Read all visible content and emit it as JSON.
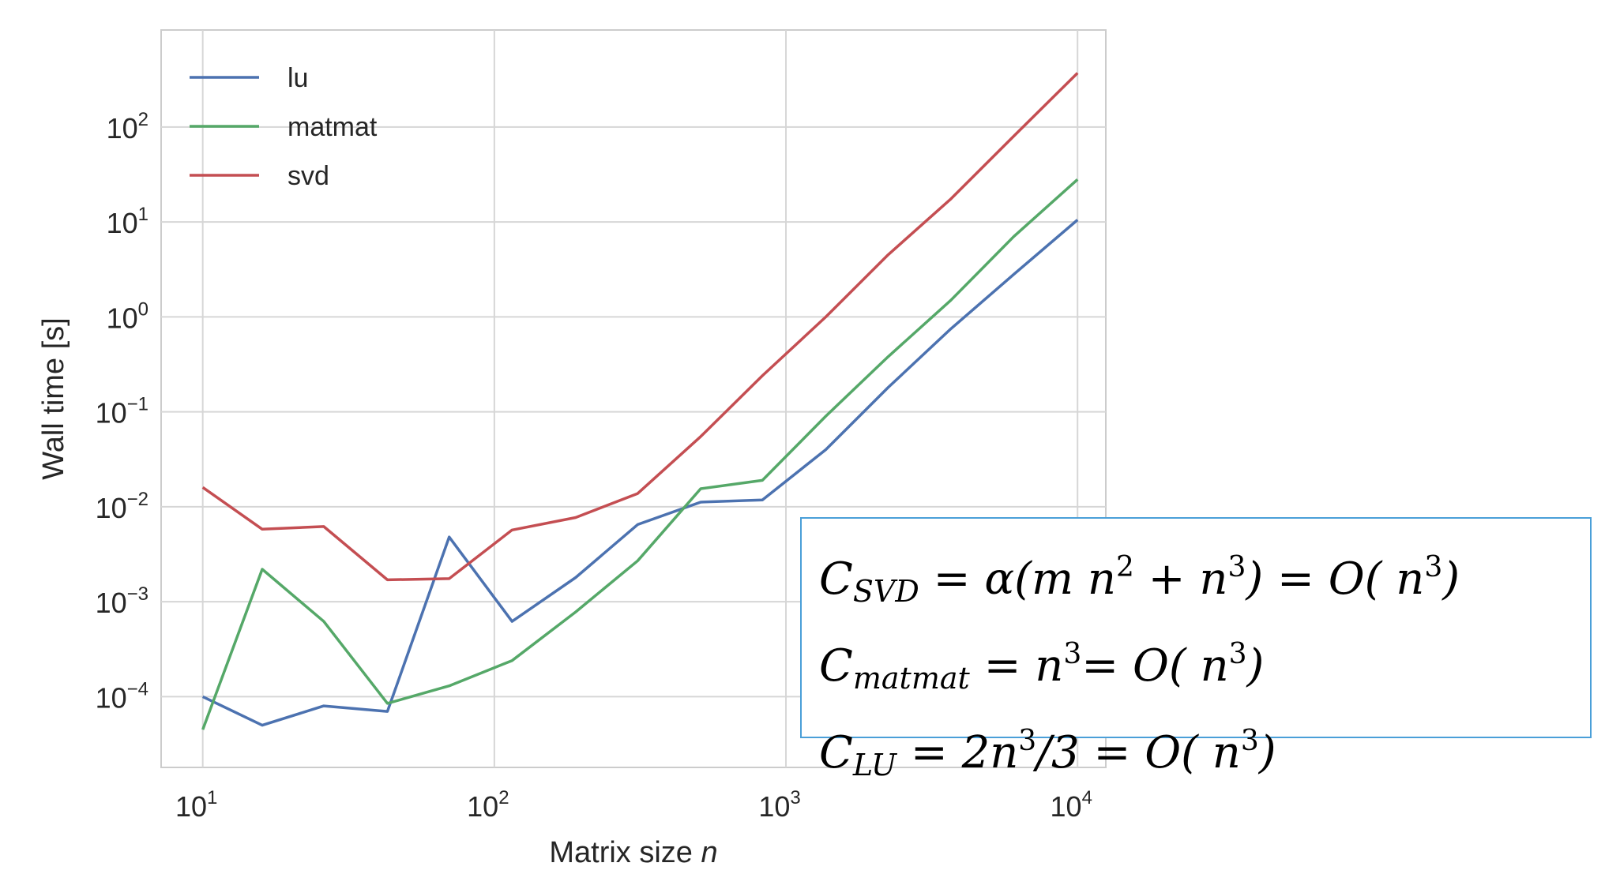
{
  "chart_data": {
    "type": "line",
    "xlabel": "Matrix size n",
    "xlabel_main": "Matrix size ",
    "xlabel_var": "n",
    "ylabel": "Wall time [s]",
    "xscale": "log",
    "yscale": "log",
    "xlim": [
      7.2,
      12500
    ],
    "ylim": [
      1.8e-05,
      1050
    ],
    "xticks": [
      {
        "base": "10",
        "exp": "1",
        "value": 10
      },
      {
        "base": "10",
        "exp": "2",
        "value": 100
      },
      {
        "base": "10",
        "exp": "3",
        "value": 1000
      },
      {
        "base": "10",
        "exp": "4",
        "value": 10000
      }
    ],
    "yticks": [
      {
        "base": "10",
        "exp": "−4",
        "value": 0.0001
      },
      {
        "base": "10",
        "exp": "−3",
        "value": 0.001
      },
      {
        "base": "10",
        "exp": "−2",
        "value": 0.01
      },
      {
        "base": "10",
        "exp": "−1",
        "value": 0.1
      },
      {
        "base": "10",
        "exp": "0",
        "value": 1
      },
      {
        "base": "10",
        "exp": "1",
        "value": 10
      },
      {
        "base": "10",
        "exp": "2",
        "value": 100
      }
    ],
    "grid": true,
    "legend_position": "top-left",
    "x": [
      10,
      16,
      26,
      43,
      70,
      115,
      190,
      310,
      510,
      830,
      1370,
      2240,
      3680,
      6040,
      10000
    ],
    "series": [
      {
        "name": "lu",
        "color": "#4c72b0",
        "values": [
          0.0001,
          5e-05,
          8e-05,
          7e-05,
          0.0048,
          0.00062,
          0.0018,
          0.0065,
          0.0112,
          0.0118,
          0.04,
          0.18,
          0.75,
          2.8,
          10.5
        ]
      },
      {
        "name": "matmat",
        "color": "#55a868",
        "values": [
          4.5e-05,
          0.0022,
          0.00062,
          8.5e-05,
          0.00013,
          0.00024,
          0.00078,
          0.0027,
          0.0155,
          0.019,
          0.09,
          0.38,
          1.5,
          7.0,
          28
        ]
      },
      {
        "name": "svd",
        "color": "#c44e52",
        "values": [
          0.016,
          0.0058,
          0.0062,
          0.0017,
          0.00175,
          0.0057,
          0.0077,
          0.0138,
          0.055,
          0.24,
          1.0,
          4.5,
          17.5,
          80,
          370
        ]
      }
    ]
  },
  "formulas": [
    {
      "c": "C",
      "sub": "SVD",
      "rest": " = α(m n",
      "sup1": "2",
      "mid": " + n",
      "sup2": "3",
      "tail": ") = O( n",
      "sup3": "3",
      "end": ")"
    },
    {
      "c": "C",
      "sub": "matmat",
      "rest": " = n",
      "sup1": "3",
      "mid": "= O( n",
      "sup2": "3",
      "tail": ")"
    },
    {
      "c": "C",
      "sub": "LU",
      "rest": " = 2n",
      "sup1": "3",
      "mid": "/3 = O( n",
      "sup2": "3",
      "tail": ")"
    }
  ]
}
